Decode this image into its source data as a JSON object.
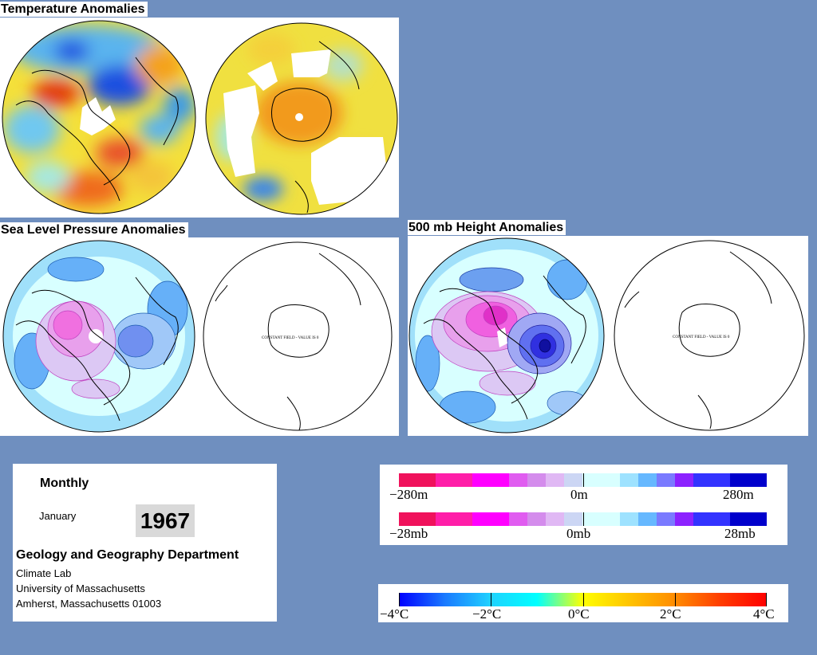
{
  "panels": {
    "temperature": {
      "title": "Temperature Anomalies"
    },
    "slp": {
      "title": "Sea Level Pressure Anomalies"
    },
    "height500": {
      "title": "500 mb Height Anomalies"
    }
  },
  "constant_field_note": "CONSTANT FIELD - VALUE IS 0",
  "info": {
    "period": "Monthly",
    "month": "January",
    "year": "1967",
    "department": "Geology and Geography Department",
    "lines": [
      "Climate Lab",
      "University of Massachusetts",
      "Amherst, Massachusetts 01003"
    ]
  },
  "legends": {
    "height": {
      "left": "−280m",
      "mid": "0m",
      "right": "280m",
      "colors": [
        "#f0125c",
        "#f0125c",
        "#ff1ea8",
        "#ff1ea8",
        "#ff00ff",
        "#ff00ff",
        "#e05cf0",
        "#d48cec",
        "#e0b8f4",
        "#ccd6f4",
        "#d8ffff",
        "#d8ffff",
        "#9ee2ff",
        "#66b8ff",
        "#7a7aff",
        "#8c22ff",
        "#3333ff",
        "#3333ff",
        "#0000cc",
        "#0000cc"
      ]
    },
    "pressure": {
      "left": "−28mb",
      "mid": "0mb",
      "right": "28mb",
      "colors": [
        "#f0125c",
        "#f0125c",
        "#ff1ea8",
        "#ff1ea8",
        "#ff00ff",
        "#ff00ff",
        "#e05cf0",
        "#d48cec",
        "#e0b8f4",
        "#ccd6f4",
        "#d8ffff",
        "#d8ffff",
        "#9ee2ff",
        "#66b8ff",
        "#7a7aff",
        "#8c22ff",
        "#3333ff",
        "#3333ff",
        "#0000cc",
        "#0000cc"
      ]
    },
    "temperature": {
      "labels": [
        "−4°C",
        "−2°C",
        "0°C",
        "2°C",
        "4°C"
      ],
      "stops": [
        "#0000ff",
        "#1a7aff",
        "#1fd2ff",
        "#00ffff",
        "#ffff00",
        "#ffc400",
        "#ff8c00",
        "#ff3c00",
        "#ff0000"
      ]
    }
  }
}
